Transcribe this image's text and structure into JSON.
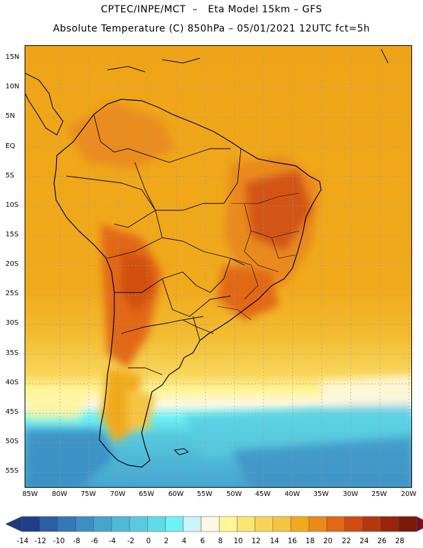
{
  "header": {
    "line1": "CPTEC/INPE/MCT  –   Eta Model 15km – GFS",
    "line2": "Absolute Temperature (C) 850hPa – 05/01/2021 12UTC fct=5h"
  },
  "map": {
    "lat_labels": [
      "15N",
      "10N",
      "5N",
      "EQ",
      "5S",
      "10S",
      "15S",
      "20S",
      "25S",
      "30S",
      "35S",
      "40S",
      "45S",
      "50S",
      "55S"
    ],
    "lon_labels": [
      "85W",
      "80W",
      "75W",
      "70W",
      "65W",
      "60W",
      "55W",
      "50W",
      "45W",
      "40W",
      "35W",
      "30W",
      "25W",
      "20W"
    ]
  },
  "colorbar": {
    "labels": [
      "-14",
      "-12",
      "-10",
      "-8",
      "-6",
      "-4",
      "-2",
      "0",
      "2",
      "4",
      "6",
      "8",
      "10",
      "12",
      "14",
      "16",
      "18",
      "20",
      "22",
      "24",
      "26",
      "28"
    ],
    "colors": [
      "#1f3f8a",
      "#2a5fa6",
      "#3479b6",
      "#3c8fc4",
      "#45a5cf",
      "#4fb9d8",
      "#58cbe0",
      "#5fdcea",
      "#6ef2f6",
      "#ccf2fb",
      "#fdf7e3",
      "#fff59a",
      "#fbe672",
      "#f8d55a",
      "#f5c543",
      "#f1aa1c",
      "#ea8a1d",
      "#e26716",
      "#cf4b10",
      "#b6360e",
      "#98250b",
      "#7b190a"
    ],
    "under_color": "#1e3a7a",
    "over_color": "#7a0f24"
  }
}
